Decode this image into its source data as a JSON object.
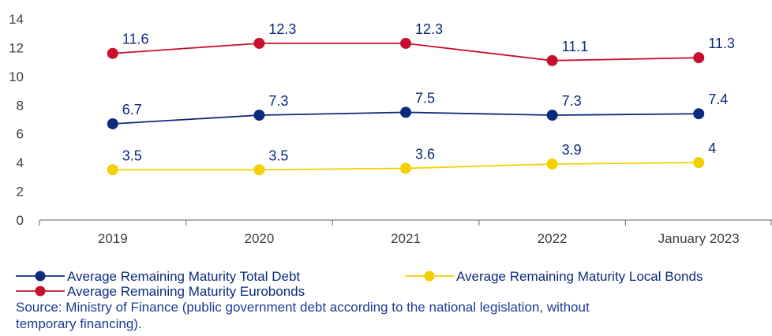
{
  "chart_data": {
    "type": "line",
    "categories": [
      "2019",
      "2020",
      "2021",
      "2022",
      "January 2023"
    ],
    "ylim": [
      0,
      14
    ],
    "yticks": [
      0,
      2,
      4,
      6,
      8,
      10,
      12,
      14
    ],
    "grid": false,
    "legend_position": "bottom",
    "series": [
      {
        "name": "Average Remaining Maturity Total Debt",
        "color": "#0d2b7c",
        "values": [
          6.7,
          7.3,
          7.5,
          7.3,
          7.4
        ],
        "labels": [
          "6.7",
          "7.3",
          "7.5",
          "7.3",
          "7.4"
        ]
      },
      {
        "name": "Average Remaining Maturity Local Bonds",
        "color": "#f5d000",
        "values": [
          3.5,
          3.5,
          3.6,
          3.9,
          4.0
        ],
        "labels": [
          "3.5",
          "3.5",
          "3.6",
          "3.9",
          "4"
        ]
      },
      {
        "name": "Average Remaining Maturity Eurobonds",
        "color": "#c8102e",
        "values": [
          11.6,
          12.3,
          12.3,
          11.1,
          11.3
        ],
        "labels": [
          "11.6",
          "12.3",
          "12.3",
          "11.1",
          "11.3"
        ]
      }
    ]
  },
  "source_lines": [
    "Source: Ministry of Finance (public government debt according to the national legislation, without",
    "temporary financing)."
  ],
  "colors": {
    "axis": "#7f7f7f",
    "tick_text": "#404040",
    "data_label_text": "#0d2b7c",
    "source_text": "#1f3b93"
  }
}
